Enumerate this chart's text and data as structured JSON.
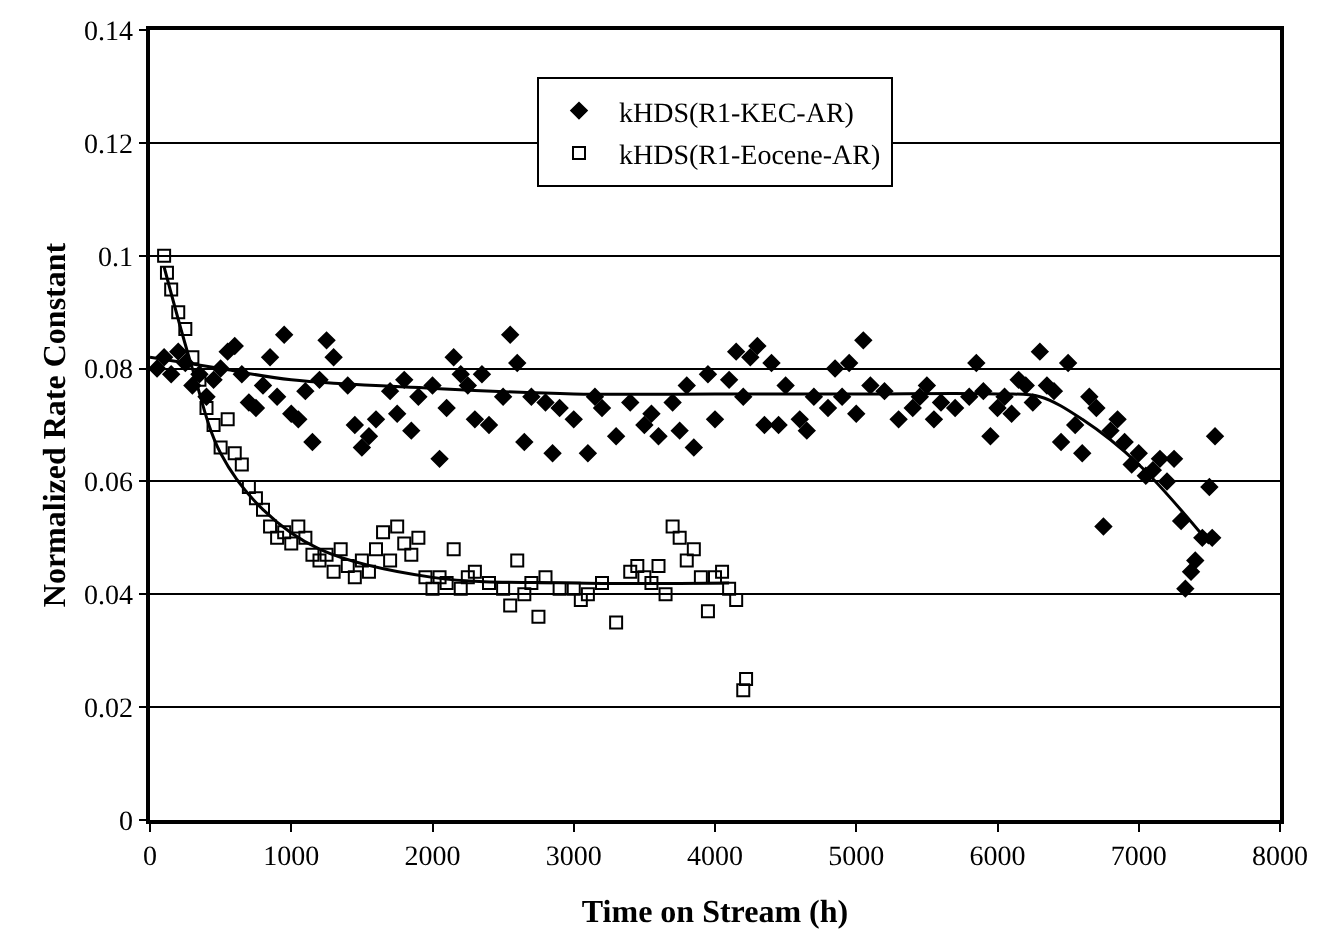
{
  "chart_data": {
    "type": "scatter",
    "xlabel": "Time on Stream (h)",
    "ylabel": "Normalized Rate Constant",
    "xlim": [
      0,
      8000
    ],
    "xticks": [
      0,
      1000,
      2000,
      3000,
      4000,
      5000,
      6000,
      7000,
      8000
    ],
    "ylim": [
      0,
      0.14
    ],
    "yticks": [
      0,
      0.02,
      0.04,
      0.06,
      0.08,
      0.1,
      0.12,
      0.14
    ],
    "grid": "y",
    "legend": "top",
    "series": [
      {
        "name": "kHDS(R1-KEC-AR)",
        "color": "#000000",
        "marker": "diamond",
        "x": [
          50,
          100,
          150,
          200,
          250,
          300,
          350,
          400,
          450,
          500,
          550,
          600,
          650,
          700,
          750,
          800,
          850,
          900,
          950,
          1000,
          1050,
          1100,
          1150,
          1200,
          1250,
          1300,
          1400,
          1450,
          1500,
          1550,
          1600,
          1700,
          1750,
          1800,
          1850,
          1900,
          2000,
          2050,
          2100,
          2150,
          2200,
          2250,
          2300,
          2350,
          2400,
          2500,
          2550,
          2600,
          2650,
          2700,
          2800,
          2850,
          2900,
          3000,
          3100,
          3150,
          3200,
          3300,
          3400,
          3500,
          3550,
          3600,
          3700,
          3750,
          3800,
          3850,
          3950,
          4000,
          4100,
          4150,
          4200,
          4250,
          4300,
          4350,
          4400,
          4450,
          4500,
          4600,
          4650,
          4700,
          4800,
          4850,
          4900,
          4950,
          5000,
          5050,
          5100,
          5200,
          5300,
          5400,
          5450,
          5500,
          5550,
          5600,
          5700,
          5800,
          5850,
          5900,
          5950,
          6000,
          6050,
          6100,
          6150,
          6200,
          6250,
          6300,
          6350,
          6400,
          6450,
          6500,
          6550,
          6600,
          6650,
          6700,
          6750,
          6800,
          6850,
          6900,
          6950,
          7000,
          7050,
          7100,
          7150,
          7200,
          7250,
          7300,
          7330,
          7370,
          7400,
          7450,
          7500,
          7520,
          7540
        ],
        "values": [
          0.08,
          0.082,
          0.079,
          0.083,
          0.081,
          0.077,
          0.079,
          0.075,
          0.078,
          0.08,
          0.083,
          0.084,
          0.079,
          0.074,
          0.073,
          0.077,
          0.082,
          0.075,
          0.086,
          0.072,
          0.071,
          0.076,
          0.067,
          0.078,
          0.085,
          0.082,
          0.077,
          0.07,
          0.066,
          0.068,
          0.071,
          0.076,
          0.072,
          0.078,
          0.069,
          0.075,
          0.077,
          0.064,
          0.073,
          0.082,
          0.079,
          0.077,
          0.071,
          0.079,
          0.07,
          0.075,
          0.086,
          0.081,
          0.067,
          0.075,
          0.074,
          0.065,
          0.073,
          0.071,
          0.065,
          0.075,
          0.073,
          0.068,
          0.074,
          0.07,
          0.072,
          0.068,
          0.074,
          0.069,
          0.077,
          0.066,
          0.079,
          0.071,
          0.078,
          0.083,
          0.075,
          0.082,
          0.084,
          0.07,
          0.081,
          0.07,
          0.077,
          0.071,
          0.069,
          0.075,
          0.073,
          0.08,
          0.075,
          0.081,
          0.072,
          0.085,
          0.077,
          0.076,
          0.071,
          0.073,
          0.075,
          0.077,
          0.071,
          0.074,
          0.073,
          0.075,
          0.081,
          0.076,
          0.068,
          0.073,
          0.075,
          0.072,
          0.078,
          0.077,
          0.074,
          0.083,
          0.077,
          0.076,
          0.067,
          0.081,
          0.07,
          0.065,
          0.075,
          0.073,
          0.052,
          0.069,
          0.071,
          0.067,
          0.063,
          0.065,
          0.061,
          0.062,
          0.064,
          0.06,
          0.064,
          0.053,
          0.041,
          0.044,
          0.046,
          0.05,
          0.059,
          0.05,
          0.068
        ]
      },
      {
        "name": "kHDS(R1-Eocene-AR)",
        "color": "#000000",
        "marker": "square",
        "x": [
          100,
          120,
          150,
          200,
          250,
          300,
          350,
          400,
          450,
          500,
          550,
          600,
          650,
          700,
          750,
          800,
          850,
          900,
          950,
          1000,
          1050,
          1100,
          1150,
          1200,
          1250,
          1300,
          1350,
          1400,
          1450,
          1500,
          1550,
          1600,
          1650,
          1700,
          1750,
          1800,
          1850,
          1900,
          1950,
          2000,
          2050,
          2100,
          2150,
          2200,
          2250,
          2300,
          2400,
          2500,
          2550,
          2600,
          2650,
          2700,
          2750,
          2800,
          2900,
          3000,
          3050,
          3100,
          3200,
          3300,
          3400,
          3450,
          3500,
          3550,
          3600,
          3650,
          3700,
          3750,
          3800,
          3850,
          3900,
          3950,
          4000,
          4050,
          4100,
          4150,
          4200,
          4220
        ],
        "values": [
          0.1,
          0.097,
          0.094,
          0.09,
          0.087,
          0.082,
          0.078,
          0.073,
          0.07,
          0.066,
          0.071,
          0.065,
          0.063,
          0.059,
          0.057,
          0.055,
          0.052,
          0.05,
          0.051,
          0.049,
          0.052,
          0.05,
          0.047,
          0.046,
          0.047,
          0.044,
          0.048,
          0.045,
          0.043,
          0.046,
          0.044,
          0.048,
          0.051,
          0.046,
          0.052,
          0.049,
          0.047,
          0.05,
          0.043,
          0.041,
          0.043,
          0.042,
          0.048,
          0.041,
          0.043,
          0.044,
          0.042,
          0.041,
          0.038,
          0.046,
          0.04,
          0.042,
          0.036,
          0.043,
          0.041,
          0.041,
          0.039,
          0.04,
          0.042,
          0.035,
          0.044,
          0.045,
          0.043,
          0.042,
          0.045,
          0.04,
          0.052,
          0.05,
          0.046,
          0.048,
          0.043,
          0.037,
          0.043,
          0.044,
          0.041,
          0.039,
          0.023,
          0.025
        ]
      },
      {
        "type": "line",
        "color": "#000000",
        "marker": "none",
        "x": [
          0,
          500,
          1000,
          2000,
          3000,
          4000,
          5000,
          6000,
          6300,
          6600,
          7000,
          7500
        ],
        "values": [
          0.082,
          0.08,
          0.078,
          0.0765,
          0.0755,
          0.0755,
          0.0755,
          0.0755,
          0.075,
          0.071,
          0.063,
          0.049
        ]
      },
      {
        "type": "line",
        "color": "#000000",
        "marker": "none",
        "x": [
          100,
          300,
          500,
          800,
          1200,
          2000,
          3000,
          4100
        ],
        "values": [
          0.098,
          0.08,
          0.065,
          0.055,
          0.048,
          0.043,
          0.042,
          0.042
        ]
      }
    ]
  }
}
